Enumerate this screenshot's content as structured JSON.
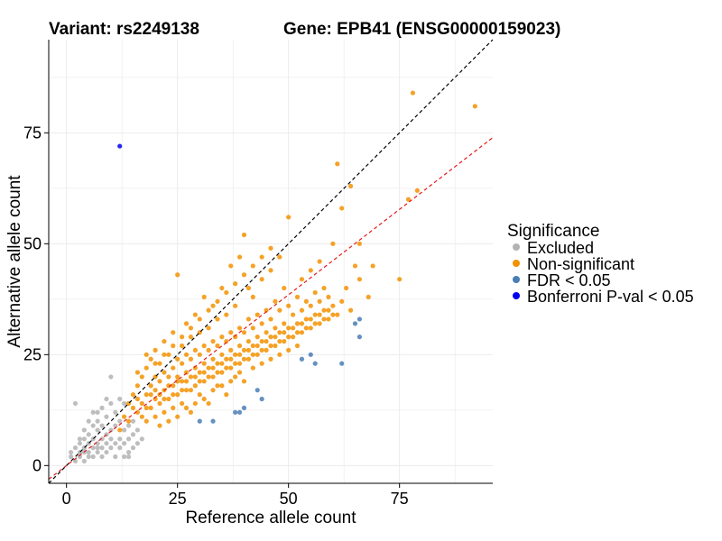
{
  "chart_data": {
    "type": "scatter",
    "title_left": "Variant: rs2249138",
    "title_right": "Gene: EPB41 (ENSG00000159023)",
    "xlabel": "Reference allele count",
    "ylabel": "Alternative allele count",
    "xlim": [
      -4,
      96
    ],
    "ylim": [
      -4,
      96
    ],
    "x_ticks": [
      0,
      25,
      50,
      75
    ],
    "y_ticks": [
      0,
      25,
      50,
      75
    ],
    "reference_lines": [
      {
        "name": "identity",
        "slope": 1.0,
        "intercept": 0,
        "color": "#000000",
        "style": "dashed"
      },
      {
        "name": "expected-ratio",
        "slope": 0.77,
        "intercept": 0,
        "color": "#e41a1c",
        "style": "dashed"
      }
    ],
    "legend": {
      "title": "Significance",
      "entries": [
        {
          "label": "Excluded",
          "color": "#b3b3b3"
        },
        {
          "label": "Non-significant",
          "color": "#f39200"
        },
        {
          "label": "FDR < 0.05",
          "color": "#4a7db5"
        },
        {
          "label": "Bonferroni P-val < 0.05",
          "color": "#0000ee"
        }
      ]
    },
    "series": [
      {
        "name": "Excluded",
        "color": "#b3b3b3",
        "points": [
          [
            1,
            2
          ],
          [
            1,
            3
          ],
          [
            2,
            1
          ],
          [
            2,
            4
          ],
          [
            2,
            14
          ],
          [
            3,
            2
          ],
          [
            3,
            3
          ],
          [
            3,
            5
          ],
          [
            4,
            1
          ],
          [
            4,
            3
          ],
          [
            4,
            4
          ],
          [
            4,
            6
          ],
          [
            5,
            2
          ],
          [
            5,
            3
          ],
          [
            5,
            5
          ],
          [
            5,
            7
          ],
          [
            6,
            2
          ],
          [
            6,
            4
          ],
          [
            6,
            6
          ],
          [
            6,
            9
          ],
          [
            7,
            3
          ],
          [
            7,
            4
          ],
          [
            7,
            5
          ],
          [
            7,
            8
          ],
          [
            7,
            10
          ],
          [
            8,
            2
          ],
          [
            8,
            4
          ],
          [
            8,
            6
          ],
          [
            8,
            9
          ],
          [
            9,
            3
          ],
          [
            9,
            5
          ],
          [
            9,
            7
          ],
          [
            9,
            11
          ],
          [
            10,
            4
          ],
          [
            10,
            6
          ],
          [
            10,
            8
          ],
          [
            10,
            20
          ],
          [
            11,
            2
          ],
          [
            11,
            5
          ],
          [
            11,
            9
          ],
          [
            11,
            12
          ],
          [
            12,
            4
          ],
          [
            12,
            6
          ],
          [
            12,
            10
          ],
          [
            13,
            2
          ],
          [
            13,
            5
          ],
          [
            13,
            8
          ],
          [
            14,
            3
          ],
          [
            14,
            6
          ],
          [
            14,
            9
          ],
          [
            15,
            4
          ],
          [
            15,
            7
          ],
          [
            16,
            5
          ],
          [
            16,
            8
          ],
          [
            17,
            6
          ],
          [
            6,
            12
          ],
          [
            9,
            15
          ],
          [
            13,
            14
          ],
          [
            3,
            6
          ],
          [
            5,
            10
          ],
          [
            8,
            13
          ],
          [
            10,
            14
          ],
          [
            12,
            15
          ],
          [
            14,
            2
          ],
          [
            15,
            10
          ],
          [
            4,
            8
          ],
          [
            7,
            12
          ]
        ]
      },
      {
        "name": "Non-significant",
        "color": "#f39200",
        "points": [
          [
            14,
            14
          ],
          [
            15,
            16
          ],
          [
            16,
            12
          ],
          [
            16,
            18
          ],
          [
            17,
            14
          ],
          [
            17,
            20
          ],
          [
            18,
            10
          ],
          [
            18,
            16
          ],
          [
            18,
            22
          ],
          [
            19,
            13
          ],
          [
            19,
            18
          ],
          [
            19,
            24
          ],
          [
            20,
            11
          ],
          [
            20,
            15
          ],
          [
            20,
            20
          ],
          [
            20,
            26
          ],
          [
            21,
            14
          ],
          [
            21,
            19
          ],
          [
            21,
            23
          ],
          [
            22,
            12
          ],
          [
            22,
            17
          ],
          [
            22,
            21
          ],
          [
            22,
            28
          ],
          [
            23,
            15
          ],
          [
            23,
            20
          ],
          [
            23,
            25
          ],
          [
            24,
            13
          ],
          [
            24,
            18
          ],
          [
            24,
            22
          ],
          [
            24,
            30
          ],
          [
            25,
            16
          ],
          [
            25,
            20
          ],
          [
            25,
            24
          ],
          [
            25,
            43
          ],
          [
            26,
            14
          ],
          [
            26,
            19
          ],
          [
            26,
            23
          ],
          [
            26,
            27
          ],
          [
            27,
            17
          ],
          [
            27,
            21
          ],
          [
            27,
            25
          ],
          [
            27,
            32
          ],
          [
            28,
            12
          ],
          [
            28,
            20
          ],
          [
            28,
            24
          ],
          [
            28,
            29
          ],
          [
            29,
            18
          ],
          [
            29,
            22
          ],
          [
            29,
            26
          ],
          [
            29,
            34
          ],
          [
            30,
            16
          ],
          [
            30,
            21
          ],
          [
            30,
            25
          ],
          [
            30,
            30
          ],
          [
            31,
            19
          ],
          [
            31,
            23
          ],
          [
            31,
            27
          ],
          [
            31,
            38
          ],
          [
            32,
            14
          ],
          [
            32,
            22
          ],
          [
            32,
            26
          ],
          [
            32,
            31
          ],
          [
            33,
            20
          ],
          [
            33,
            24
          ],
          [
            33,
            28
          ],
          [
            33,
            36
          ],
          [
            34,
            18
          ],
          [
            34,
            23
          ],
          [
            34,
            27
          ],
          [
            34,
            33
          ],
          [
            35,
            21
          ],
          [
            35,
            25
          ],
          [
            35,
            29
          ],
          [
            35,
            40
          ],
          [
            36,
            16
          ],
          [
            36,
            24
          ],
          [
            36,
            28
          ],
          [
            36,
            34
          ],
          [
            37,
            22
          ],
          [
            37,
            26
          ],
          [
            37,
            30
          ],
          [
            37,
            45
          ],
          [
            38,
            20
          ],
          [
            38,
            25
          ],
          [
            38,
            29
          ],
          [
            38,
            36
          ],
          [
            39,
            23
          ],
          [
            39,
            27
          ],
          [
            39,
            31
          ],
          [
            39,
            47
          ],
          [
            40,
            19
          ],
          [
            40,
            26
          ],
          [
            40,
            30
          ],
          [
            40,
            52
          ],
          [
            41,
            24
          ],
          [
            41,
            28
          ],
          [
            41,
            33
          ],
          [
            41,
            40
          ],
          [
            42,
            22
          ],
          [
            42,
            27
          ],
          [
            42,
            31
          ],
          [
            42,
            38
          ],
          [
            43,
            25
          ],
          [
            43,
            29
          ],
          [
            43,
            34
          ],
          [
            44,
            23
          ],
          [
            44,
            28
          ],
          [
            44,
            32
          ],
          [
            44,
            42
          ],
          [
            45,
            26
          ],
          [
            45,
            30
          ],
          [
            45,
            35
          ],
          [
            46,
            24
          ],
          [
            46,
            29
          ],
          [
            46,
            33
          ],
          [
            46,
            44
          ],
          [
            47,
            27
          ],
          [
            47,
            31
          ],
          [
            47,
            37
          ],
          [
            48,
            25
          ],
          [
            48,
            30
          ],
          [
            48,
            35
          ],
          [
            48,
            47
          ],
          [
            49,
            28
          ],
          [
            49,
            32
          ],
          [
            49,
            40
          ],
          [
            50,
            26
          ],
          [
            50,
            31
          ],
          [
            50,
            36
          ],
          [
            50,
            56
          ],
          [
            51,
            29
          ],
          [
            51,
            34
          ],
          [
            52,
            27
          ],
          [
            52,
            32
          ],
          [
            52,
            38
          ],
          [
            53,
            30
          ],
          [
            53,
            35
          ],
          [
            53,
            42
          ],
          [
            54,
            33
          ],
          [
            54,
            37
          ],
          [
            55,
            31
          ],
          [
            55,
            36
          ],
          [
            55,
            44
          ],
          [
            56,
            34
          ],
          [
            56,
            39
          ],
          [
            57,
            32
          ],
          [
            57,
            37
          ],
          [
            57,
            46
          ],
          [
            58,
            35
          ],
          [
            58,
            40
          ],
          [
            59,
            33
          ],
          [
            59,
            38
          ],
          [
            60,
            36
          ],
          [
            60,
            50
          ],
          [
            61,
            34
          ],
          [
            61,
            68
          ],
          [
            62,
            37
          ],
          [
            62,
            58
          ],
          [
            63,
            40
          ],
          [
            64,
            35
          ],
          [
            64,
            63
          ],
          [
            65,
            45
          ],
          [
            66,
            42
          ],
          [
            66,
            50
          ],
          [
            68,
            38
          ],
          [
            69,
            45
          ],
          [
            75,
            42
          ],
          [
            77,
            60
          ],
          [
            78,
            84
          ],
          [
            79,
            62
          ],
          [
            92,
            81
          ],
          [
            12,
            8
          ],
          [
            13,
            11
          ],
          [
            14,
            10
          ],
          [
            15,
            13
          ],
          [
            16,
            15
          ],
          [
            17,
            11
          ],
          [
            18,
            13
          ],
          [
            19,
            16
          ],
          [
            20,
            17
          ],
          [
            21,
            16
          ],
          [
            22,
            15
          ],
          [
            23,
            18
          ],
          [
            24,
            16
          ],
          [
            25,
            19
          ],
          [
            26,
            17
          ],
          [
            27,
            19
          ],
          [
            28,
            17
          ],
          [
            29,
            20
          ],
          [
            30,
            19
          ],
          [
            31,
            21
          ],
          [
            32,
            20
          ],
          [
            33,
            22
          ],
          [
            34,
            21
          ],
          [
            35,
            23
          ],
          [
            36,
            22
          ],
          [
            37,
            24
          ],
          [
            38,
            23
          ],
          [
            39,
            25
          ],
          [
            40,
            24
          ],
          [
            41,
            26
          ],
          [
            42,
            25
          ],
          [
            43,
            27
          ],
          [
            44,
            26
          ],
          [
            45,
            28
          ],
          [
            46,
            27
          ],
          [
            47,
            29
          ],
          [
            48,
            28
          ],
          [
            49,
            30
          ],
          [
            50,
            29
          ],
          [
            51,
            31
          ],
          [
            52,
            30
          ],
          [
            53,
            32
          ],
          [
            54,
            31
          ],
          [
            55,
            33
          ],
          [
            56,
            32
          ],
          [
            57,
            34
          ],
          [
            58,
            33
          ],
          [
            59,
            35
          ],
          [
            60,
            34
          ],
          [
            16,
            21
          ],
          [
            18,
            25
          ],
          [
            20,
            23
          ],
          [
            22,
            25
          ],
          [
            24,
            27
          ],
          [
            26,
            29
          ],
          [
            28,
            31
          ],
          [
            30,
            33
          ],
          [
            32,
            35
          ],
          [
            34,
            37
          ],
          [
            36,
            39
          ],
          [
            38,
            41
          ],
          [
            40,
            43
          ],
          [
            42,
            45
          ],
          [
            44,
            47
          ],
          [
            46,
            49
          ],
          [
            21,
            9
          ],
          [
            23,
            10
          ],
          [
            25,
            11
          ],
          [
            27,
            13
          ],
          [
            29,
            14
          ],
          [
            31,
            15
          ],
          [
            33,
            17
          ],
          [
            35,
            18
          ],
          [
            37,
            19
          ],
          [
            39,
            21
          ]
        ]
      },
      {
        "name": "FDR < 0.05",
        "color": "#4a7db5",
        "points": [
          [
            30,
            10
          ],
          [
            33,
            10
          ],
          [
            38,
            12
          ],
          [
            39,
            12
          ],
          [
            40,
            13
          ],
          [
            43,
            17
          ],
          [
            44,
            15
          ],
          [
            53,
            24
          ],
          [
            55,
            25
          ],
          [
            56,
            23
          ],
          [
            62,
            23
          ],
          [
            65,
            32
          ],
          [
            66,
            29
          ],
          [
            66,
            33
          ]
        ]
      },
      {
        "name": "Bonferroni P-val < 0.05",
        "color": "#0000ee",
        "points": [
          [
            12,
            72
          ]
        ]
      }
    ]
  }
}
